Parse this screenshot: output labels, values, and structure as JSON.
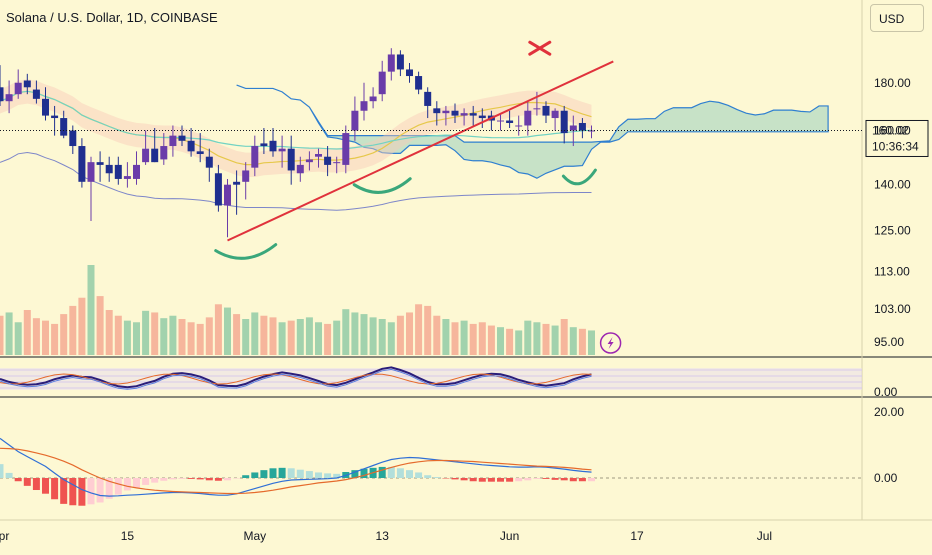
{
  "header": {
    "title": "Solana / U.S. Dollar, 1D, COINBASE",
    "currency_button": "USD"
  },
  "price_axis": {
    "labels": [
      "180.00",
      "160.00",
      "140.00",
      "125.00",
      "113.00",
      "103.00",
      "95.00"
    ]
  },
  "last_price": {
    "value": "160.02",
    "countdown": "10:36:34",
    "color": "#131722"
  },
  "indicator_axis": {
    "rsi_label": "0.00",
    "macd_labels": [
      "20.00",
      "0.00"
    ]
  },
  "time_axis": {
    "labels": [
      "Apr",
      "15",
      "May",
      "13",
      "Jun",
      "17",
      "Jul"
    ]
  },
  "icons": {
    "lightning": "lightning-icon"
  },
  "colors": {
    "up": "#6a3ca9",
    "down": "#1f2f8f",
    "trendline": "#e0323c",
    "support_arc": "#3aa77b",
    "cloud_green": "#9ad0be",
    "cloud_red": "#f8c9b7",
    "volume_up": "#8bc8a4",
    "volume_down": "#f4a58f",
    "macd_line": "#2f6fd6",
    "signal_line": "#e56a2c"
  },
  "chart_data": {
    "type": "candlestick",
    "symbol": "Solana / U.S. Dollar",
    "interval": "1D",
    "exchange": "COINBASE",
    "currency": "USD",
    "last_price": 160.02,
    "x": [
      "Apr 6",
      "Apr 7",
      "Apr 8",
      "Apr 9",
      "Apr 10",
      "Apr 11",
      "Apr 12",
      "Apr 13",
      "Apr 14",
      "Apr 15",
      "Apr 16",
      "Apr 17",
      "Apr 18",
      "Apr 19",
      "Apr 20",
      "Apr 21",
      "Apr 22",
      "Apr 23",
      "Apr 24",
      "Apr 25",
      "Apr 26",
      "Apr 27",
      "Apr 28",
      "Apr 29",
      "Apr 30",
      "May 1",
      "May 2",
      "May 3",
      "May 4",
      "May 5",
      "May 6",
      "May 7",
      "May 8",
      "May 9",
      "May 10",
      "May 11",
      "May 12",
      "May 13",
      "May 14",
      "May 15",
      "May 16",
      "May 17",
      "May 18",
      "May 19",
      "May 20",
      "May 21",
      "May 22",
      "May 23",
      "May 24",
      "May 25",
      "May 26",
      "May 27",
      "May 28",
      "May 29",
      "May 30",
      "May 31",
      "Jun 1",
      "Jun 2",
      "Jun 3",
      "Jun 4",
      "Jun 5",
      "Jun 6",
      "Jun 7",
      "Jun 8",
      "Jun 9",
      "Jun 10"
    ],
    "open": [
      178,
      172,
      175,
      181,
      177,
      173,
      166,
      165,
      160,
      154,
      141,
      148,
      147,
      147,
      142,
      142,
      148,
      153,
      149,
      154,
      158,
      156,
      152,
      150,
      144,
      133,
      141,
      141,
      146,
      155,
      156,
      152,
      153,
      144,
      148,
      150,
      150,
      148,
      147,
      160,
      168,
      172,
      175,
      185,
      193,
      186,
      183,
      176,
      169,
      167,
      168,
      166,
      167,
      166,
      166,
      164,
      164,
      162,
      162,
      169,
      170,
      165,
      168,
      160,
      163,
      160
    ],
    "high": [
      188,
      181,
      186,
      184,
      181,
      178,
      170,
      168,
      162,
      157,
      150,
      152,
      150,
      150,
      148,
      152,
      160,
      161,
      159,
      162,
      162,
      161,
      159,
      153,
      147,
      142,
      145,
      148,
      158,
      161,
      161,
      158,
      158,
      150,
      152,
      153,
      154,
      150,
      162,
      174,
      180,
      178,
      190,
      196,
      195,
      189,
      185,
      178,
      172,
      170,
      171,
      169,
      170,
      169,
      168,
      167,
      168,
      166,
      172,
      176,
      172,
      169,
      170,
      166,
      165,
      162
    ],
    "low": [
      170,
      167,
      173,
      175,
      171,
      164,
      158,
      157,
      151,
      139,
      128,
      141,
      141,
      140,
      139,
      140,
      147,
      148,
      147,
      150,
      154,
      150,
      148,
      141,
      131,
      123,
      130,
      135,
      143,
      151,
      150,
      146,
      140,
      141,
      145,
      146,
      143,
      144,
      144,
      156,
      164,
      169,
      172,
      181,
      183,
      180,
      175,
      165,
      162,
      162,
      163,
      162,
      162,
      161,
      160,
      160,
      161,
      158,
      158,
      166,
      163,
      160,
      155,
      154,
      157,
      157
    ],
    "close": [
      172,
      175,
      180,
      178,
      173,
      166,
      165,
      158,
      154,
      141,
      148,
      147,
      144,
      142,
      143,
      147,
      153,
      148,
      154,
      158,
      156,
      152,
      151,
      146,
      133,
      140,
      140,
      145,
      154,
      154,
      152,
      153,
      145,
      147,
      149,
      151,
      147,
      148,
      159,
      168,
      172,
      174,
      185,
      193,
      186,
      183,
      177,
      170,
      167,
      168,
      166,
      167,
      166,
      165,
      164,
      164,
      163,
      162,
      168,
      169,
      166,
      168,
      159,
      162,
      160,
      160.02
    ],
    "volume": [
      48,
      52,
      40,
      55,
      45,
      42,
      38,
      50,
      60,
      70,
      110,
      72,
      55,
      48,
      42,
      40,
      54,
      52,
      45,
      48,
      44,
      40,
      38,
      46,
      62,
      58,
      50,
      44,
      52,
      48,
      46,
      40,
      42,
      44,
      46,
      40,
      38,
      42,
      56,
      52,
      50,
      46,
      44,
      40,
      48,
      52,
      62,
      60,
      48,
      44,
      40,
      42,
      38,
      40,
      36,
      34,
      32,
      30,
      42,
      40,
      38,
      36,
      44,
      34,
      32,
      30
    ],
    "price_axis_ticks": [
      180,
      160,
      140,
      125,
      113,
      103,
      95
    ],
    "scale": "log",
    "ylim": [
      92,
      205
    ],
    "trendline": {
      "from": {
        "date": "May 1",
        "price": 122
      },
      "to": {
        "date": "Jun 8",
        "price": 186
      }
    },
    "rsi_ticks": [
      0
    ],
    "macd": {
      "macd": [
        12,
        10,
        8,
        6.5,
        5,
        3.5,
        1.5,
        -0.5,
        -2,
        -3.5,
        -4.5,
        -5.3,
        -5.5,
        -5.4,
        -5.2,
        -5.1,
        -4.9,
        -4.7,
        -4.5,
        -4.4,
        -4.4,
        -4.5,
        -4.7,
        -5,
        -5.2,
        -5.2,
        -4.8,
        -4,
        -3.2,
        -2.4,
        -1.6,
        -1,
        -0.6,
        -0.5,
        -0.4,
        -0.3,
        -0.2,
        0,
        0.8,
        1.8,
        2.8,
        3.8,
        4.8,
        5.6,
        6,
        6.2,
        6.1,
        5.8,
        5.5,
        5.2,
        4.9,
        4.6,
        4.3,
        4,
        3.8,
        3.6,
        3.4,
        3.3,
        3.3,
        3.4,
        3.3,
        3,
        2.7,
        2.3,
        2,
        1.8
      ],
      "signal": [
        9,
        8.9,
        8.7,
        8.2,
        7.6,
        6.9,
        6.1,
        5.1,
        3.9,
        2.5,
        1.2,
        0,
        -1,
        -1.8,
        -2.5,
        -3,
        -3.4,
        -3.7,
        -3.9,
        -4.1,
        -4.2,
        -4.3,
        -4.4,
        -4.5,
        -4.6,
        -4.7,
        -4.7,
        -4.6,
        -4.4,
        -4.1,
        -3.7,
        -3.2,
        -2.7,
        -2.3,
        -1.9,
        -1.5,
        -1.2,
        -0.9,
        -0.5,
        0.1,
        0.8,
        1.6,
        2.4,
        3.2,
        3.9,
        4.5,
        4.9,
        5.2,
        5.3,
        5.3,
        5.2,
        5.1,
        5,
        4.8,
        4.6,
        4.4,
        4.2,
        4,
        3.8,
        3.6,
        3.5,
        3.4,
        3.2,
        3,
        2.7,
        2.5
      ],
      "ticks": [
        20,
        0
      ]
    },
    "xlabels": [
      "Apr",
      "15",
      "May",
      "13",
      "Jun",
      "17",
      "Jul"
    ]
  }
}
